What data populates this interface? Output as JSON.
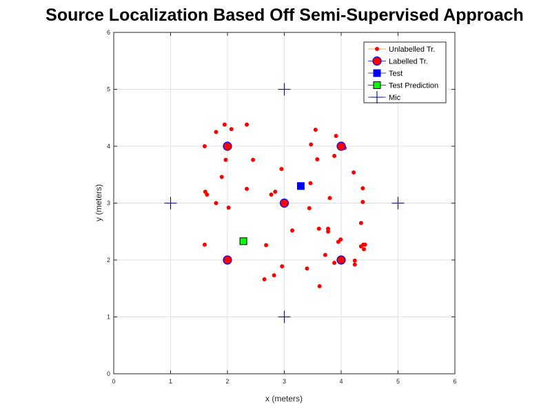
{
  "chart_data": {
    "type": "scatter",
    "title": "Source Localization Based Off Semi-Supervised Approach",
    "xlabel": "x (meters)",
    "ylabel": "y (meters)",
    "xlim": [
      0,
      6
    ],
    "ylim": [
      0,
      6
    ],
    "xticks": [
      0,
      1,
      2,
      3,
      4,
      5,
      6
    ],
    "yticks": [
      0,
      1,
      2,
      3,
      4,
      5,
      6
    ],
    "grid": true,
    "legend_position": "top-right",
    "colors": {
      "unlabelled": "#ff0000",
      "labelled_fill": "#ff0000",
      "labelled_edge": "#0000ff",
      "test": "#0000ff",
      "prediction_fill": "#00ff00",
      "prediction_edge": "#000000",
      "mic": "#000080",
      "legend_line": "#e69500"
    },
    "series": [
      {
        "name": "Unlabelled Tr.",
        "marker": "dot",
        "points": [
          [
            1.6,
            4.0
          ],
          [
            1.8,
            4.25
          ],
          [
            1.95,
            4.38
          ],
          [
            2.07,
            4.3
          ],
          [
            2.34,
            4.38
          ],
          [
            1.97,
            3.76
          ],
          [
            2.45,
            3.76
          ],
          [
            1.9,
            3.46
          ],
          [
            1.61,
            3.2
          ],
          [
            1.64,
            3.15
          ],
          [
            2.34,
            3.25
          ],
          [
            1.8,
            3.0
          ],
          [
            2.02,
            2.92
          ],
          [
            2.77,
            3.15
          ],
          [
            2.84,
            3.2
          ],
          [
            2.95,
            3.6
          ],
          [
            1.6,
            2.27
          ],
          [
            2.68,
            2.26
          ],
          [
            2.96,
            1.89
          ],
          [
            2.82,
            1.73
          ],
          [
            2.65,
            1.66
          ],
          [
            3.55,
            4.29
          ],
          [
            3.91,
            4.18
          ],
          [
            3.47,
            4.03
          ],
          [
            4.06,
            3.97
          ],
          [
            3.88,
            3.83
          ],
          [
            3.58,
            3.77
          ],
          [
            4.22,
            3.54
          ],
          [
            3.46,
            3.35
          ],
          [
            3.8,
            3.09
          ],
          [
            4.38,
            3.26
          ],
          [
            4.38,
            3.02
          ],
          [
            3.44,
            2.91
          ],
          [
            3.14,
            2.52
          ],
          [
            3.61,
            2.55
          ],
          [
            3.77,
            2.55
          ],
          [
            3.77,
            2.5
          ],
          [
            4.35,
            2.65
          ],
          [
            3.95,
            2.32
          ],
          [
            3.99,
            2.36
          ],
          [
            4.35,
            2.24
          ],
          [
            4.39,
            2.27
          ],
          [
            4.42,
            2.27
          ],
          [
            4.4,
            2.19
          ],
          [
            3.72,
            2.09
          ],
          [
            3.88,
            1.95
          ],
          [
            4.24,
            1.99
          ],
          [
            4.24,
            1.92
          ],
          [
            3.4,
            1.85
          ],
          [
            3.62,
            1.54
          ]
        ]
      },
      {
        "name": "Labelled Tr.",
        "marker": "circle",
        "points": [
          [
            2,
            4
          ],
          [
            4,
            4
          ],
          [
            3,
            3
          ],
          [
            2,
            2
          ],
          [
            4,
            2
          ]
        ]
      },
      {
        "name": "Test",
        "marker": "square",
        "points": [
          [
            3.29,
            3.3
          ]
        ]
      },
      {
        "name": "Test Prediction",
        "marker": "square",
        "points": [
          [
            2.28,
            2.33
          ]
        ]
      },
      {
        "name": "Mic",
        "marker": "plus",
        "points": [
          [
            3,
            5
          ],
          [
            1,
            3
          ],
          [
            5,
            3
          ],
          [
            3,
            1
          ]
        ]
      }
    ]
  }
}
